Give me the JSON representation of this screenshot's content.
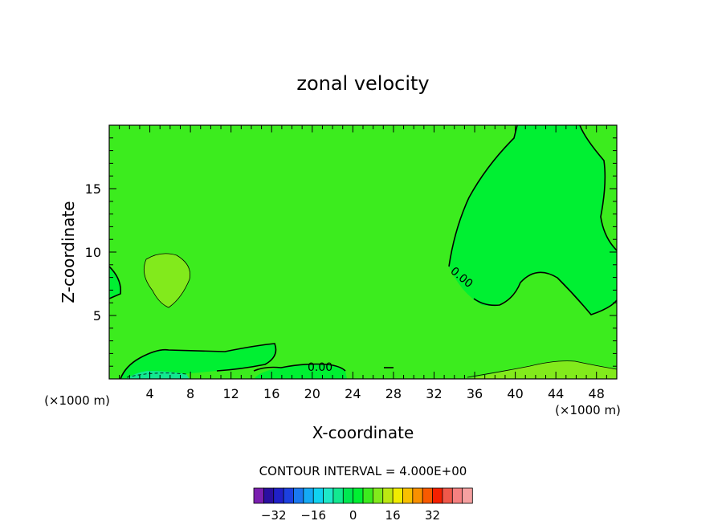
{
  "chart_data": {
    "type": "contour",
    "title": "zonal velocity",
    "xlabel": "X-coordinate",
    "ylabel": "Z-coordinate",
    "x_unit": "(×1000 m)",
    "xlim": [
      0,
      50
    ],
    "ylim": [
      0,
      20
    ],
    "x_ticks": [
      4,
      8,
      12,
      16,
      20,
      24,
      28,
      32,
      36,
      40,
      44,
      48
    ],
    "y_ticks": [
      5,
      10,
      15
    ],
    "contour_interval_text": "CONTOUR INTERVAL = 4.000E+00",
    "contour_interval": 4.0,
    "contour_labels": [
      "0.00",
      "0.00"
    ],
    "colorbar": {
      "levels": [
        -36,
        -32,
        -28,
        -24,
        -20,
        -16,
        -12,
        -8,
        -4,
        0,
        4,
        8,
        12,
        16,
        20,
        24,
        28,
        32,
        36
      ],
      "tick_labels": [
        -32,
        -16,
        0,
        16,
        32
      ],
      "colors": [
        "#7a1fb0",
        "#2a0fa0",
        "#2020c8",
        "#1c40e0",
        "#1a78f0",
        "#14aaf5",
        "#10d2f0",
        "#1ee8c8",
        "#12e890",
        "#00e850",
        "#00f032",
        "#3cec1e",
        "#82ea1c",
        "#bce812",
        "#f0ec00",
        "#f8c000",
        "#f89000",
        "#f85a00",
        "#f52000",
        "#f0584a",
        "#f58080",
        "#f5a0a0"
      ]
    },
    "field_colors": {
      "background_range_0_to_4": "#3cec1e",
      "range_4_to_8": "#82ea1c",
      "range_minus4_to_0": "#00f032",
      "range_minus8_to_minus4": "#12e890"
    }
  }
}
